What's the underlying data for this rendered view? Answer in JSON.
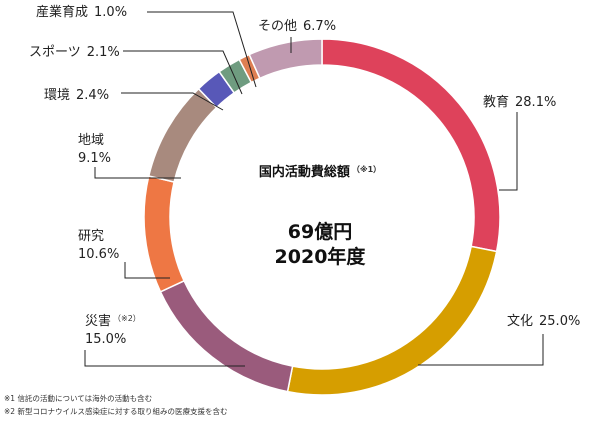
{
  "chart_data": {
    "type": "pie",
    "donut": true,
    "title": "国内活動費総額",
    "title_note_mark": "（※1）",
    "center_lines": [
      "69億円",
      "2020年度"
    ],
    "unit": "%",
    "slices": [
      {
        "name": "教育",
        "value": 28.1,
        "value_label": "28.1%",
        "color": "#de425b"
      },
      {
        "name": "文化",
        "value": 25.0,
        "value_label": "25.0%",
        "color": "#d69e00"
      },
      {
        "name": "災害",
        "note_mark": "（※2）",
        "value": 15.0,
        "value_label": "15.0%",
        "color": "#9a5b7c"
      },
      {
        "name": "研究",
        "value": 10.6,
        "value_label": "10.6%",
        "color": "#ee7744"
      },
      {
        "name": "地域",
        "value": 9.1,
        "value_label": "9.1%",
        "color": "#a88a7e"
      },
      {
        "name": "環境",
        "value": 2.4,
        "value_label": "2.4%",
        "color": "#5858b8"
      },
      {
        "name": "スポーツ",
        "value": 2.1,
        "value_label": "2.1%",
        "color": "#6f9c80"
      },
      {
        "name": "産業育成",
        "value": 1.0,
        "value_label": "1.0%",
        "color": "#de7f52"
      },
      {
        "name": "その他",
        "value": 6.7,
        "value_label": "6.7%",
        "color": "#c09ab0"
      }
    ]
  },
  "footnotes": [
    "※1 信託の活動については海外の活動も含む",
    "※2 新型コロナウイルス感染症に対する取り組みの医療支援を含む"
  ]
}
